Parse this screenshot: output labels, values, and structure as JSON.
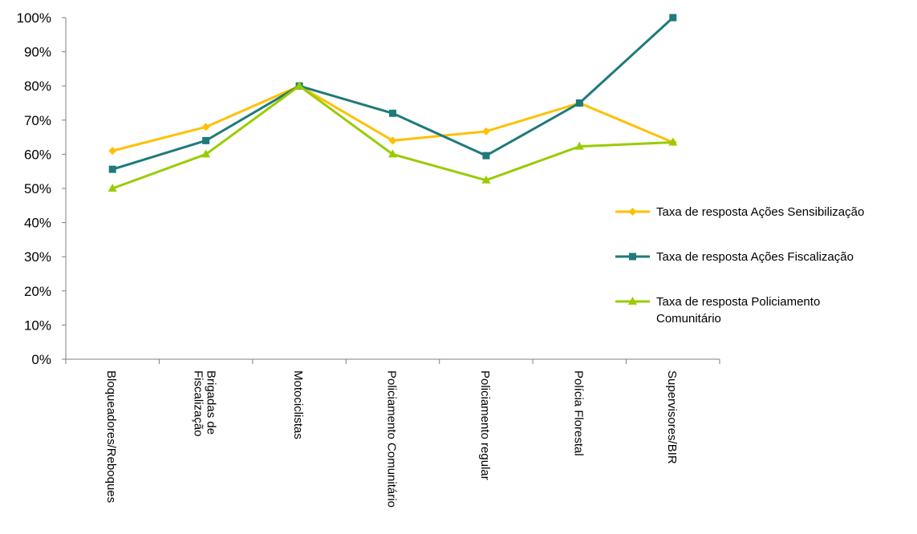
{
  "chart_data": {
    "type": "line",
    "title": "",
    "xlabel": "",
    "ylabel": "",
    "ylim": [
      0,
      100
    ],
    "y_ticks": [
      "0%",
      "10%",
      "20%",
      "30%",
      "40%",
      "50%",
      "60%",
      "70%",
      "80%",
      "90%",
      "100%"
    ],
    "grid": false,
    "legend_position": "right",
    "categories": [
      [
        "Bloqueadores/Reboques"
      ],
      [
        "Brigadas de",
        "Fiscalização"
      ],
      [
        "Motociclistas"
      ],
      [
        "Policiamento Comunitário"
      ],
      [
        "Policiamento regular"
      ],
      [
        "Polícia Florestal"
      ],
      [
        "Supervisores/BIR"
      ]
    ],
    "series": [
      {
        "name": [
          "Taxa de resposta Ações Sensibilização"
        ],
        "color": "#ffc000",
        "marker": "diamond",
        "values": [
          61,
          68,
          80,
          64,
          66.7,
          75,
          63.5
        ]
      },
      {
        "name": [
          "Taxa de resposta Ações Fiscalização"
        ],
        "color": "#1f7a7a",
        "marker": "square",
        "values": [
          55.6,
          64,
          80,
          72,
          59.6,
          75,
          100
        ]
      },
      {
        "name": [
          "Taxa de resposta Policiamento",
          "Comunitário"
        ],
        "color": "#99cc00",
        "marker": "triangle",
        "values": [
          50,
          60,
          80,
          60,
          52.4,
          62.3,
          63.5
        ]
      }
    ]
  }
}
